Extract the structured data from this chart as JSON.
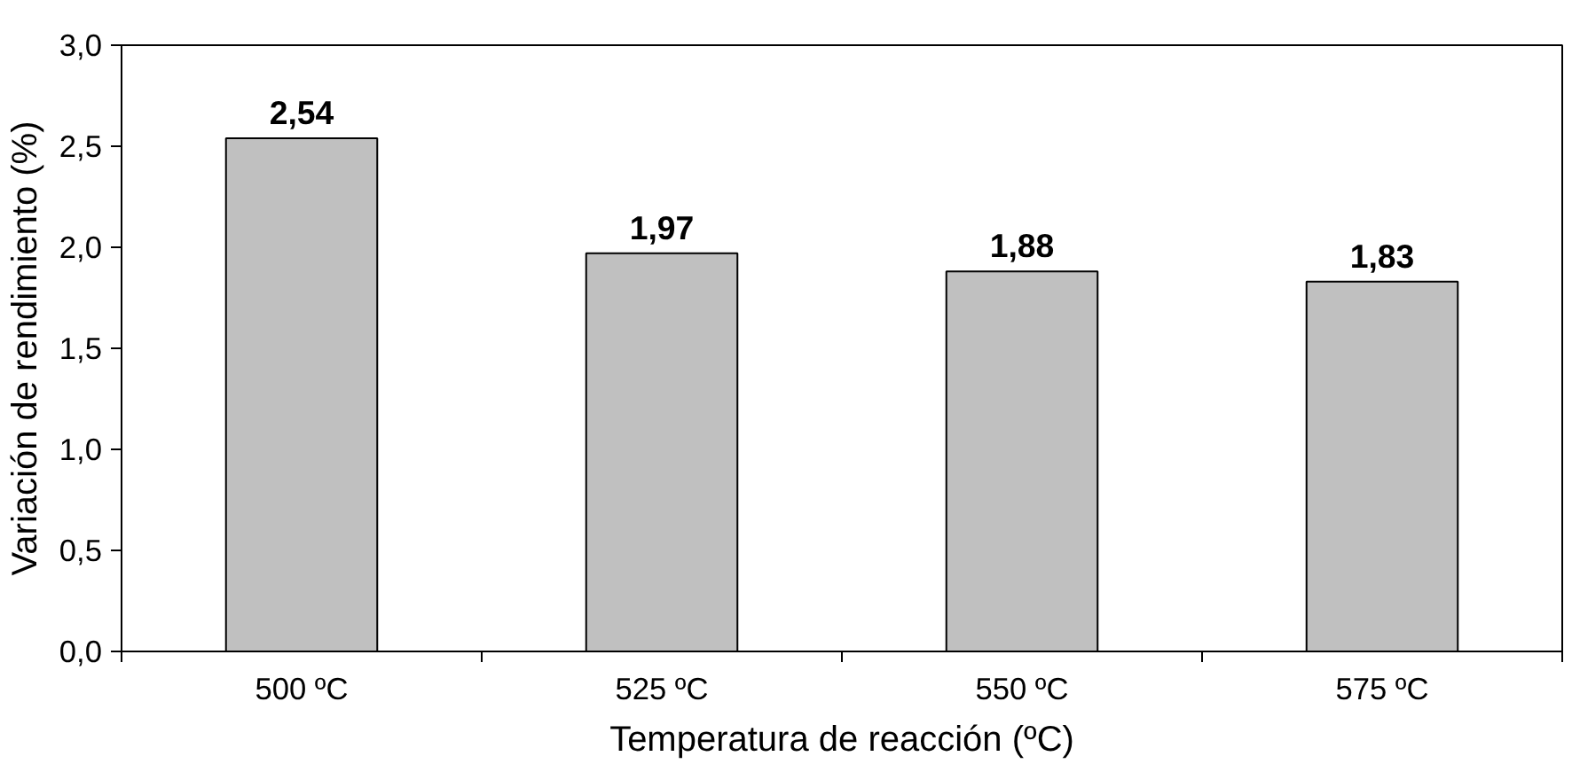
{
  "chart_data": {
    "type": "bar",
    "xlabel": "Temperatura de reacción (ºC)",
    "ylabel": "Variación de rendimiento (%)",
    "categories": [
      "500 ºC",
      "525 ºC",
      "550 ºC",
      "575 ºC"
    ],
    "values": [
      2.54,
      1.97,
      1.88,
      1.83
    ],
    "value_labels": [
      "2,54",
      "1,97",
      "1,88",
      "1,83"
    ],
    "color": "#c0c0c0",
    "ylim": [
      0,
      3
    ],
    "yticks": [
      {
        "value": 0,
        "label": "0,0"
      },
      {
        "value": 0.5,
        "label": "0,5"
      },
      {
        "value": 1,
        "label": "1,0"
      },
      {
        "value": 1.5,
        "label": "1,5"
      },
      {
        "value": 2,
        "label": "2,0"
      },
      {
        "value": 2.5,
        "label": "2,5"
      },
      {
        "value": 3,
        "label": "3,0"
      }
    ],
    "grid": false
  }
}
